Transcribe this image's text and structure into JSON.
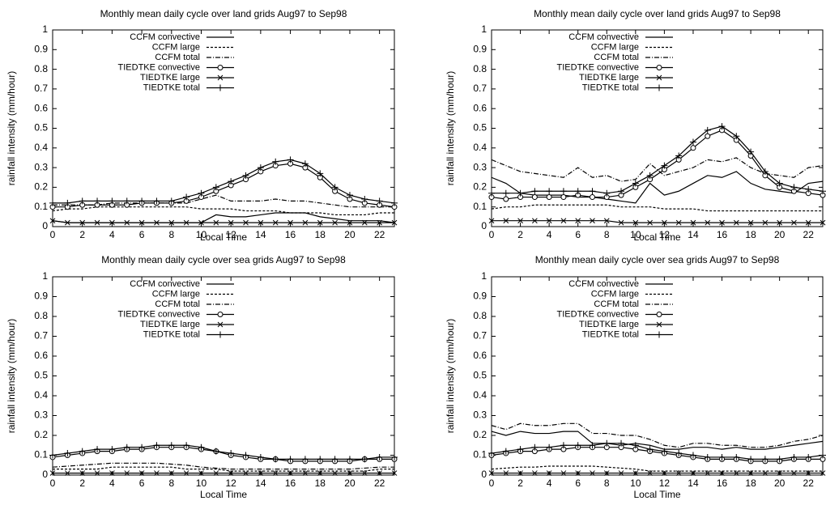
{
  "chart_data": [
    {
      "type": "line",
      "title": "Monthly mean daily cycle over land grids Aug97 to Sep98",
      "xlabel": "Local Time",
      "ylabel": "rainfall intensity (mm/hour)",
      "x": [
        0,
        1,
        2,
        3,
        4,
        5,
        6,
        7,
        8,
        9,
        10,
        11,
        12,
        13,
        14,
        15,
        16,
        17,
        18,
        19,
        20,
        21,
        22,
        23
      ],
      "xlim": [
        0,
        23
      ],
      "xticks": [
        0,
        2,
        4,
        6,
        8,
        10,
        12,
        14,
        16,
        18,
        20,
        22
      ],
      "ylim": [
        0,
        1
      ],
      "yticks": [
        0,
        0.1,
        0.2,
        0.3,
        0.4,
        0.5,
        0.6,
        0.7,
        0.8,
        0.9,
        1
      ],
      "legend": "upper left",
      "series": [
        {
          "name": "CCFM convective",
          "color": "#000000",
          "dash": "solid",
          "marker": "none",
          "values": [
            0.03,
            0.02,
            0.02,
            0.02,
            0.02,
            0.02,
            0.02,
            0.02,
            0.02,
            0.02,
            0.02,
            0.06,
            0.05,
            0.05,
            0.06,
            0.07,
            0.07,
            0.07,
            0.05,
            0.04,
            0.03,
            0.03,
            0.03,
            0.02
          ]
        },
        {
          "name": "CCFM large",
          "color": "#000000",
          "dash": "dashed",
          "marker": "none",
          "values": [
            0.08,
            0.09,
            0.09,
            0.1,
            0.1,
            0.1,
            0.1,
            0.1,
            0.1,
            0.1,
            0.09,
            0.09,
            0.09,
            0.08,
            0.08,
            0.08,
            0.07,
            0.07,
            0.07,
            0.06,
            0.06,
            0.06,
            0.07,
            0.07
          ]
        },
        {
          "name": "CCFM total",
          "color": "#000000",
          "dash": "dashdot",
          "marker": "none",
          "values": [
            0.11,
            0.11,
            0.11,
            0.11,
            0.12,
            0.12,
            0.12,
            0.12,
            0.12,
            0.12,
            0.14,
            0.16,
            0.13,
            0.13,
            0.13,
            0.14,
            0.13,
            0.13,
            0.12,
            0.11,
            0.1,
            0.1,
            0.1,
            0.1
          ]
        },
        {
          "name": "TIEDTKE convective",
          "color": "#000000",
          "dash": "solid",
          "marker": "circle",
          "values": [
            0.1,
            0.1,
            0.11,
            0.11,
            0.11,
            0.11,
            0.12,
            0.12,
            0.12,
            0.13,
            0.15,
            0.18,
            0.21,
            0.24,
            0.28,
            0.31,
            0.32,
            0.3,
            0.25,
            0.18,
            0.14,
            0.12,
            0.11,
            0.1
          ]
        },
        {
          "name": "TIEDTKE large",
          "color": "#000000",
          "dash": "solid",
          "marker": "cross",
          "values": [
            0.03,
            0.02,
            0.02,
            0.02,
            0.02,
            0.02,
            0.02,
            0.02,
            0.02,
            0.02,
            0.02,
            0.02,
            0.02,
            0.02,
            0.02,
            0.02,
            0.02,
            0.02,
            0.02,
            0.02,
            0.02,
            0.02,
            0.02,
            0.02
          ]
        },
        {
          "name": "TIEDTKE total",
          "color": "#000000",
          "dash": "solid",
          "marker": "plus",
          "values": [
            0.12,
            0.12,
            0.13,
            0.13,
            0.13,
            0.13,
            0.13,
            0.13,
            0.13,
            0.15,
            0.17,
            0.2,
            0.23,
            0.26,
            0.3,
            0.33,
            0.34,
            0.32,
            0.27,
            0.2,
            0.16,
            0.14,
            0.13,
            0.12
          ]
        }
      ]
    },
    {
      "type": "line",
      "title": "Monthly mean daily cycle over land grids Aug97 to Sep98",
      "xlabel": "Local Time",
      "ylabel": "rainfall intensity (mm/hour)",
      "x": [
        0,
        1,
        2,
        3,
        4,
        5,
        6,
        7,
        8,
        9,
        10,
        11,
        12,
        13,
        14,
        15,
        16,
        17,
        18,
        19,
        20,
        21,
        22,
        23
      ],
      "xlim": [
        0,
        23
      ],
      "xticks": [
        0,
        2,
        4,
        6,
        8,
        10,
        12,
        14,
        16,
        18,
        20,
        22
      ],
      "ylim": [
        0,
        1
      ],
      "yticks": [
        0,
        0.1,
        0.2,
        0.3,
        0.4,
        0.5,
        0.6,
        0.7,
        0.8,
        0.9,
        1
      ],
      "legend": "upper left",
      "series": [
        {
          "name": "CCFM convective",
          "color": "#000000",
          "dash": "solid",
          "marker": "none",
          "values": [
            0.25,
            0.22,
            0.17,
            0.16,
            0.16,
            0.16,
            0.15,
            0.15,
            0.14,
            0.13,
            0.12,
            0.22,
            0.16,
            0.18,
            0.22,
            0.26,
            0.25,
            0.28,
            0.22,
            0.19,
            0.18,
            0.17,
            0.22,
            0.23
          ]
        },
        {
          "name": "CCFM large",
          "color": "#000000",
          "dash": "dashed",
          "marker": "none",
          "values": [
            0.09,
            0.1,
            0.1,
            0.11,
            0.11,
            0.11,
            0.11,
            0.11,
            0.11,
            0.1,
            0.1,
            0.1,
            0.09,
            0.09,
            0.09,
            0.08,
            0.08,
            0.08,
            0.08,
            0.08,
            0.08,
            0.08,
            0.08,
            0.08
          ]
        },
        {
          "name": "CCFM total",
          "color": "#000000",
          "dash": "dashdot",
          "marker": "none",
          "values": [
            0.34,
            0.31,
            0.28,
            0.27,
            0.26,
            0.25,
            0.3,
            0.25,
            0.26,
            0.23,
            0.24,
            0.32,
            0.26,
            0.28,
            0.3,
            0.34,
            0.33,
            0.35,
            0.3,
            0.27,
            0.26,
            0.25,
            0.3,
            0.31
          ]
        },
        {
          "name": "TIEDTKE convective",
          "color": "#000000",
          "dash": "solid",
          "marker": "circle",
          "values": [
            0.15,
            0.14,
            0.15,
            0.15,
            0.15,
            0.15,
            0.16,
            0.15,
            0.15,
            0.16,
            0.2,
            0.24,
            0.29,
            0.34,
            0.4,
            0.46,
            0.49,
            0.44,
            0.36,
            0.26,
            0.2,
            0.18,
            0.17,
            0.16
          ]
        },
        {
          "name": "TIEDTKE large",
          "color": "#000000",
          "dash": "solid",
          "marker": "cross",
          "values": [
            0.03,
            0.03,
            0.03,
            0.03,
            0.03,
            0.03,
            0.03,
            0.03,
            0.03,
            0.02,
            0.02,
            0.02,
            0.02,
            0.02,
            0.02,
            0.02,
            0.02,
            0.02,
            0.02,
            0.02,
            0.02,
            0.02,
            0.02,
            0.02
          ]
        },
        {
          "name": "TIEDTKE total",
          "color": "#000000",
          "dash": "solid",
          "marker": "plus",
          "values": [
            0.17,
            0.17,
            0.17,
            0.18,
            0.18,
            0.18,
            0.18,
            0.18,
            0.17,
            0.18,
            0.22,
            0.26,
            0.31,
            0.36,
            0.43,
            0.49,
            0.51,
            0.46,
            0.38,
            0.28,
            0.22,
            0.2,
            0.19,
            0.18
          ]
        }
      ]
    },
    {
      "type": "line",
      "title": "Monthly mean daily cycle over sea grids Aug97 to Sep98",
      "xlabel": "Local Time",
      "ylabel": "rainfall intensity (mm/hour)",
      "x": [
        0,
        1,
        2,
        3,
        4,
        5,
        6,
        7,
        8,
        9,
        10,
        11,
        12,
        13,
        14,
        15,
        16,
        17,
        18,
        19,
        20,
        21,
        22,
        23
      ],
      "xlim": [
        0,
        23
      ],
      "xticks": [
        0,
        2,
        4,
        6,
        8,
        10,
        12,
        14,
        16,
        18,
        20,
        22
      ],
      "ylim": [
        0,
        1
      ],
      "yticks": [
        0,
        0.1,
        0.2,
        0.3,
        0.4,
        0.5,
        0.6,
        0.7,
        0.8,
        0.9,
        1
      ],
      "legend": "upper left",
      "series": [
        {
          "name": "CCFM convective",
          "color": "#000000",
          "dash": "solid",
          "marker": "none",
          "values": [
            0.01,
            0.01,
            0.01,
            0.01,
            0.01,
            0.01,
            0.01,
            0.01,
            0.01,
            0.01,
            0.01,
            0.01,
            0.01,
            0.01,
            0.01,
            0.01,
            0.01,
            0.01,
            0.01,
            0.01,
            0.01,
            0.01,
            0.01,
            0.01
          ]
        },
        {
          "name": "CCFM large",
          "color": "#000000",
          "dash": "dashed",
          "marker": "none",
          "values": [
            0.03,
            0.03,
            0.03,
            0.03,
            0.04,
            0.04,
            0.04,
            0.04,
            0.04,
            0.03,
            0.03,
            0.03,
            0.02,
            0.02,
            0.02,
            0.02,
            0.02,
            0.02,
            0.02,
            0.02,
            0.02,
            0.02,
            0.03,
            0.03
          ]
        },
        {
          "name": "CCFM total",
          "color": "#000000",
          "dash": "dashdot",
          "marker": "none",
          "values": [
            0.04,
            0.045,
            0.05,
            0.055,
            0.06,
            0.06,
            0.06,
            0.06,
            0.055,
            0.05,
            0.04,
            0.035,
            0.03,
            0.03,
            0.03,
            0.03,
            0.03,
            0.03,
            0.03,
            0.03,
            0.03,
            0.035,
            0.04,
            0.04
          ]
        },
        {
          "name": "TIEDTKE convective",
          "color": "#000000",
          "dash": "solid",
          "marker": "circle",
          "values": [
            0.09,
            0.1,
            0.11,
            0.12,
            0.12,
            0.13,
            0.13,
            0.14,
            0.14,
            0.14,
            0.13,
            0.12,
            0.1,
            0.09,
            0.08,
            0.08,
            0.07,
            0.07,
            0.07,
            0.07,
            0.07,
            0.08,
            0.08,
            0.08
          ]
        },
        {
          "name": "TIEDTKE large",
          "color": "#000000",
          "dash": "solid",
          "marker": "cross",
          "values": [
            0.01,
            0.01,
            0.01,
            0.01,
            0.01,
            0.01,
            0.01,
            0.01,
            0.01,
            0.01,
            0.01,
            0.01,
            0.01,
            0.01,
            0.01,
            0.01,
            0.01,
            0.01,
            0.01,
            0.01,
            0.01,
            0.01,
            0.01,
            0.01
          ]
        },
        {
          "name": "TIEDTKE total",
          "color": "#000000",
          "dash": "solid",
          "marker": "plus",
          "values": [
            0.1,
            0.11,
            0.12,
            0.13,
            0.13,
            0.14,
            0.14,
            0.15,
            0.15,
            0.15,
            0.14,
            0.12,
            0.11,
            0.1,
            0.09,
            0.08,
            0.08,
            0.08,
            0.08,
            0.08,
            0.08,
            0.08,
            0.09,
            0.09
          ]
        }
      ]
    },
    {
      "type": "line",
      "title": "Monthly mean daily cycle over sea grids Aug97 to Sep98",
      "xlabel": "Local Time",
      "ylabel": "rainfall intensity (mm/hour)",
      "x": [
        0,
        1,
        2,
        3,
        4,
        5,
        6,
        7,
        8,
        9,
        10,
        11,
        12,
        13,
        14,
        15,
        16,
        17,
        18,
        19,
        20,
        21,
        22,
        23
      ],
      "xlim": [
        0,
        23
      ],
      "xticks": [
        0,
        2,
        4,
        6,
        8,
        10,
        12,
        14,
        16,
        18,
        20,
        22
      ],
      "ylim": [
        0,
        1
      ],
      "yticks": [
        0,
        0.1,
        0.2,
        0.3,
        0.4,
        0.5,
        0.6,
        0.7,
        0.8,
        0.9,
        1
      ],
      "legend": "upper left",
      "series": [
        {
          "name": "CCFM convective",
          "color": "#000000",
          "dash": "solid",
          "marker": "none",
          "values": [
            0.22,
            0.2,
            0.22,
            0.21,
            0.21,
            0.22,
            0.22,
            0.16,
            0.16,
            0.15,
            0.16,
            0.15,
            0.13,
            0.13,
            0.14,
            0.14,
            0.13,
            0.14,
            0.13,
            0.13,
            0.14,
            0.15,
            0.16,
            0.17
          ]
        },
        {
          "name": "CCFM large",
          "color": "#000000",
          "dash": "dashed",
          "marker": "none",
          "values": [
            0.03,
            0.035,
            0.04,
            0.04,
            0.045,
            0.045,
            0.045,
            0.045,
            0.04,
            0.035,
            0.03,
            0.02,
            0.02,
            0.02,
            0.02,
            0.02,
            0.02,
            0.02,
            0.02,
            0.02,
            0.02,
            0.02,
            0.02,
            0.02
          ]
        },
        {
          "name": "CCFM total",
          "color": "#000000",
          "dash": "dashdot",
          "marker": "none",
          "values": [
            0.25,
            0.23,
            0.26,
            0.25,
            0.25,
            0.26,
            0.26,
            0.21,
            0.21,
            0.2,
            0.2,
            0.18,
            0.15,
            0.14,
            0.16,
            0.16,
            0.15,
            0.15,
            0.14,
            0.14,
            0.15,
            0.17,
            0.18,
            0.2
          ]
        },
        {
          "name": "TIEDTKE convective",
          "color": "#000000",
          "dash": "solid",
          "marker": "circle",
          "values": [
            0.1,
            0.11,
            0.12,
            0.12,
            0.13,
            0.13,
            0.14,
            0.14,
            0.14,
            0.14,
            0.13,
            0.12,
            0.11,
            0.1,
            0.09,
            0.08,
            0.08,
            0.08,
            0.07,
            0.07,
            0.07,
            0.08,
            0.08,
            0.08
          ]
        },
        {
          "name": "TIEDTKE large",
          "color": "#000000",
          "dash": "solid",
          "marker": "cross",
          "values": [
            0.01,
            0.01,
            0.01,
            0.01,
            0.01,
            0.01,
            0.01,
            0.01,
            0.01,
            0.01,
            0.01,
            0.01,
            0.01,
            0.01,
            0.01,
            0.01,
            0.01,
            0.01,
            0.01,
            0.01,
            0.01,
            0.01,
            0.01,
            0.01
          ]
        },
        {
          "name": "TIEDTKE total",
          "color": "#000000",
          "dash": "solid",
          "marker": "plus",
          "values": [
            0.11,
            0.12,
            0.13,
            0.14,
            0.14,
            0.15,
            0.15,
            0.15,
            0.16,
            0.16,
            0.15,
            0.13,
            0.12,
            0.11,
            0.1,
            0.09,
            0.09,
            0.09,
            0.08,
            0.08,
            0.08,
            0.09,
            0.09,
            0.1
          ]
        }
      ]
    }
  ]
}
